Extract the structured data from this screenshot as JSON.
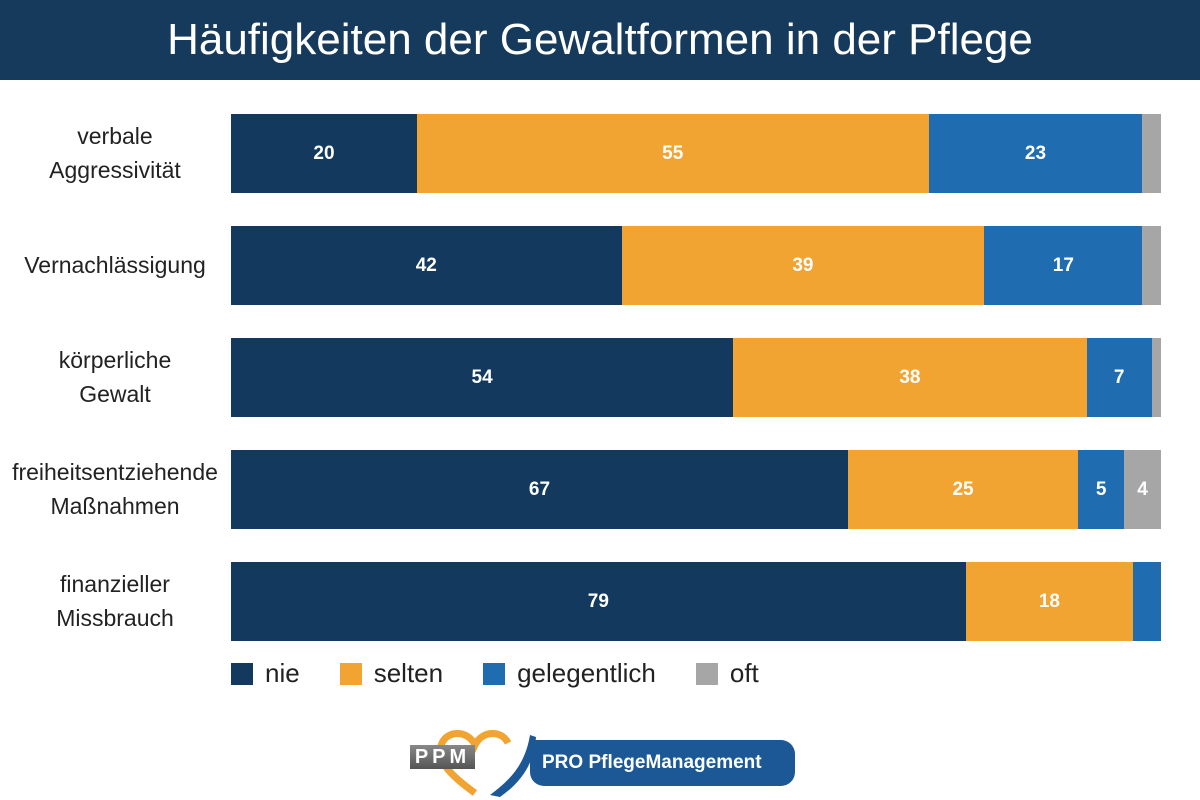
{
  "title": "Häufigkeiten der Gewaltformen in der Pflege",
  "chart_data": {
    "type": "bar",
    "orientation": "horizontal",
    "stacked": true,
    "title": "Häufigkeiten der Gewaltformen in der Pflege",
    "categories": [
      [
        "verbale",
        "Aggressivität"
      ],
      [
        "Vernachlässigung"
      ],
      [
        "körperliche",
        "Gewalt"
      ],
      [
        "freiheitsentziehende",
        "Maßnahmen"
      ],
      [
        "finanzieller",
        "Missbrauch"
      ]
    ],
    "series": [
      {
        "name": "nie",
        "color": "#133a5e",
        "values": [
          20,
          42,
          54,
          67,
          79
        ],
        "labels": [
          "20",
          "42",
          "54",
          "67",
          "79"
        ]
      },
      {
        "name": "selten",
        "color": "#f1a431",
        "values": [
          55,
          39,
          38,
          25,
          18
        ],
        "labels": [
          "55",
          "39",
          "38",
          "25",
          "18"
        ]
      },
      {
        "name": "gelegentlich",
        "color": "#1f6cb0",
        "values": [
          23,
          17,
          7,
          5,
          3
        ],
        "labels": [
          "23",
          "17",
          "7",
          "5",
          ""
        ]
      },
      {
        "name": "oft",
        "color": "#a6a6a6",
        "values": [
          2,
          2,
          1,
          4,
          0
        ],
        "labels": [
          "",
          "",
          "",
          "4",
          ""
        ]
      }
    ],
    "legend_position": "bottom-left",
    "grid": false
  },
  "logo": {
    "badge": "PPM",
    "name": "PRO PflegeManagement",
    "accent": "#f1a431",
    "brand": "#1c5796"
  }
}
